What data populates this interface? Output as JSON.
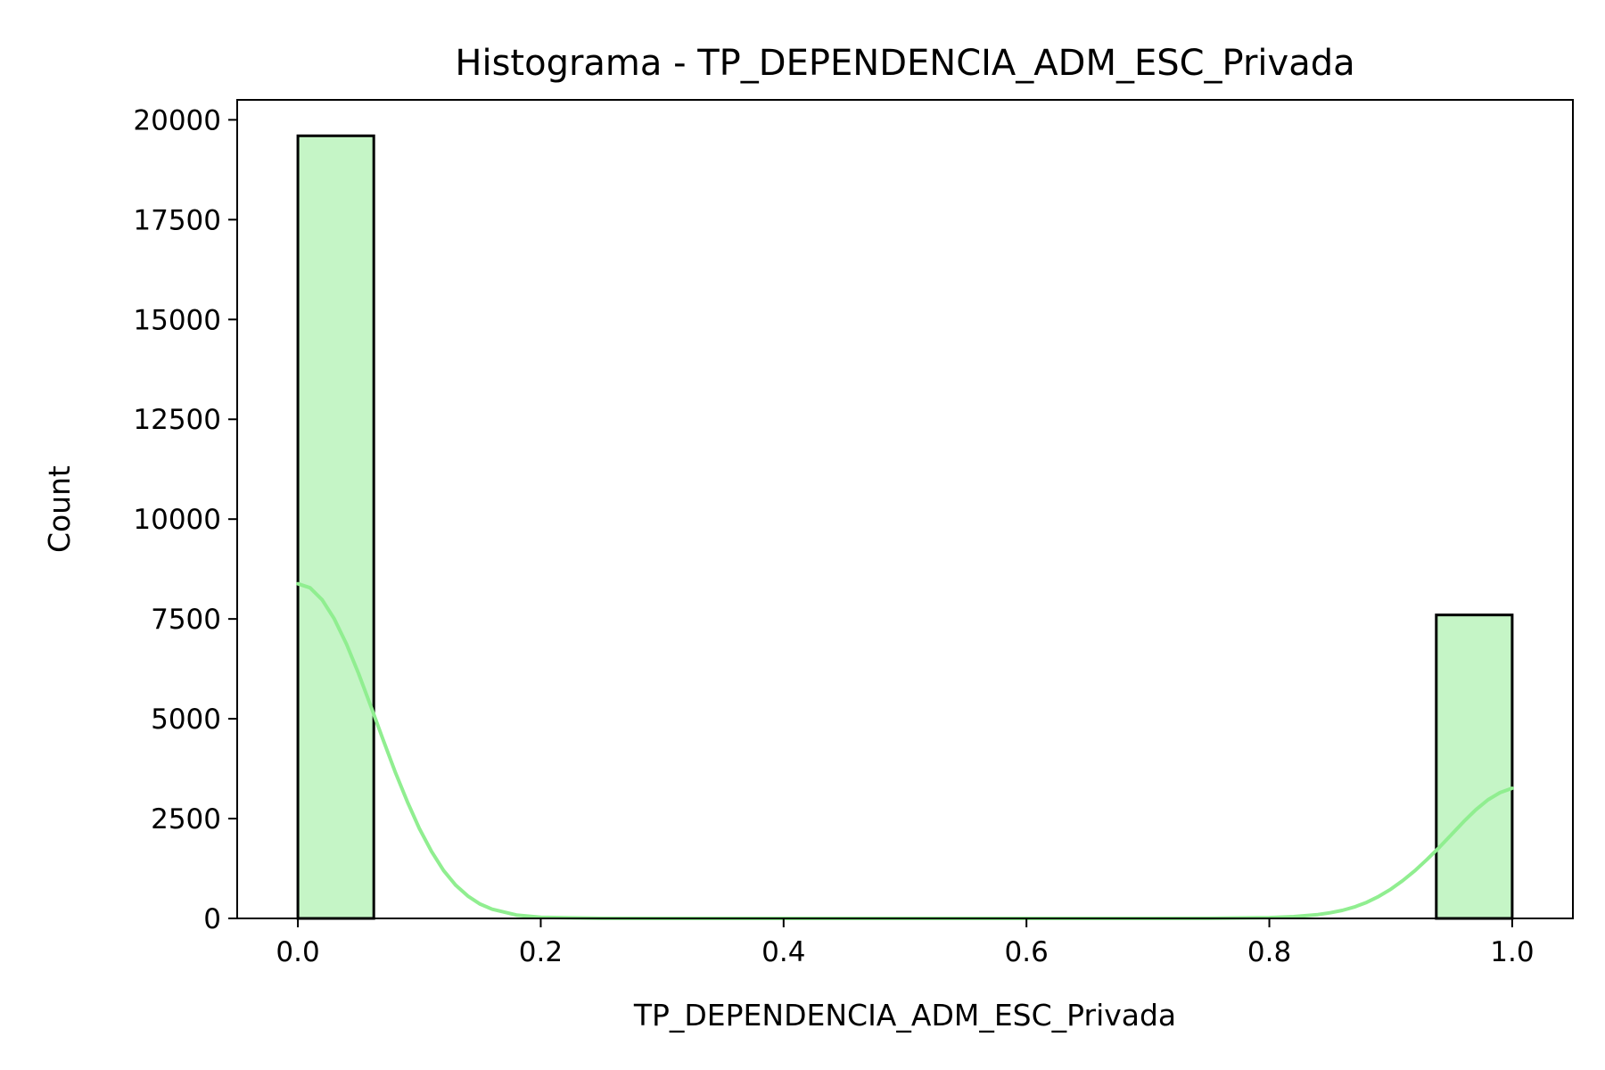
{
  "chart_data": {
    "type": "bar",
    "title": "Histograma - TP_DEPENDENCIA_ADM_ESC_Privada",
    "xlabel": "TP_DEPENDENCIA_ADM_ESC_Privada",
    "ylabel": "Count",
    "xlim": [
      -0.05,
      1.05
    ],
    "ylim": [
      0,
      20500
    ],
    "x_ticks": [
      "0.0",
      "0.2",
      "0.4",
      "0.6",
      "0.8",
      "1.0"
    ],
    "y_ticks": [
      "0",
      "2500",
      "5000",
      "7500",
      "10000",
      "12500",
      "15000",
      "17500",
      "20000"
    ],
    "bin_width": 0.0625,
    "bins": [
      {
        "start": 0.0,
        "end": 0.0625,
        "count": 19600
      },
      {
        "start": 0.9375,
        "end": 1.0,
        "count": 7600
      }
    ],
    "kde_curve": {
      "x": [
        0.0,
        0.01,
        0.02,
        0.03,
        0.04,
        0.05,
        0.06,
        0.07,
        0.08,
        0.09,
        0.1,
        0.11,
        0.12,
        0.13,
        0.14,
        0.15,
        0.16,
        0.18,
        0.2,
        0.25,
        0.3,
        0.4,
        0.5,
        0.6,
        0.7,
        0.75,
        0.8,
        0.82,
        0.84,
        0.85,
        0.86,
        0.87,
        0.88,
        0.89,
        0.9,
        0.91,
        0.92,
        0.93,
        0.94,
        0.95,
        0.96,
        0.97,
        0.98,
        0.99,
        1.0
      ],
      "y": [
        8380,
        8280,
        7980,
        7500,
        6870,
        6130,
        5320,
        4490,
        3680,
        2930,
        2250,
        1680,
        1200,
        830,
        560,
        360,
        230,
        85,
        30,
        3,
        0,
        0,
        0,
        0,
        0,
        2,
        20,
        45,
        95,
        140,
        200,
        285,
        400,
        550,
        730,
        950,
        1200,
        1480,
        1780,
        2100,
        2420,
        2720,
        2970,
        3150,
        3260
      ]
    },
    "grid": false,
    "legend": "none",
    "colors": {
      "bar_fill": "#c5f5c6",
      "bar_edge": "#000000",
      "kde_line": "#90ee90"
    }
  }
}
